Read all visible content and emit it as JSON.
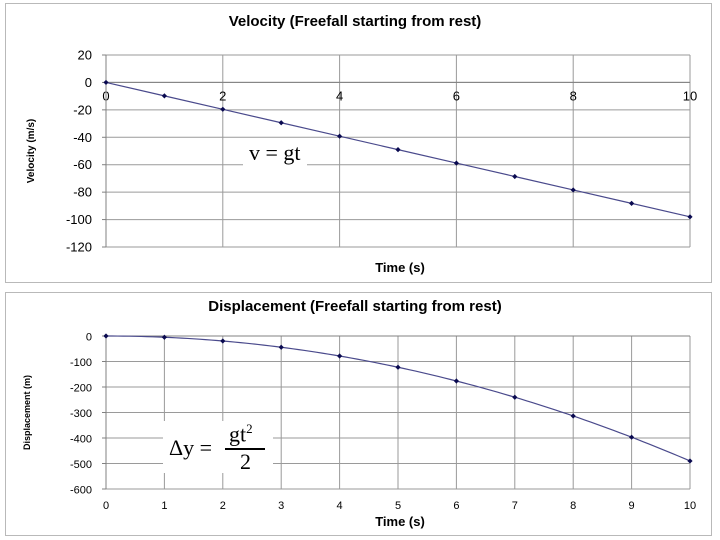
{
  "chart_data": [
    {
      "type": "line",
      "title": "Velocity (Freefall starting from rest)",
      "xlabel": "Time (s)",
      "ylabel": "Velocity (m/s)",
      "x": [
        0,
        1,
        2,
        3,
        4,
        5,
        6,
        7,
        8,
        9,
        10
      ],
      "series": [
        {
          "name": "Velocity",
          "values": [
            0,
            -9.8,
            -19.6,
            -29.4,
            -39.2,
            -49,
            -58.8,
            -68.6,
            -78.4,
            -88.2,
            -98
          ]
        }
      ],
      "xlim": [
        0,
        10
      ],
      "ylim": [
        -120,
        20
      ],
      "xticks": [
        "0",
        "2",
        "4",
        "6",
        "8",
        "10"
      ],
      "yticks": [
        "20",
        "0",
        "-20",
        "-40",
        "-60",
        "-80",
        "-100",
        "-120"
      ],
      "grid": true,
      "annotation": "v = gt",
      "color": "#4a4a8c"
    },
    {
      "type": "line",
      "title": "Displacement (Freefall starting from rest)",
      "xlabel": "Time (s)",
      "ylabel": "Displacement (m)",
      "x": [
        0,
        1,
        2,
        3,
        4,
        5,
        6,
        7,
        8,
        9,
        10
      ],
      "series": [
        {
          "name": "Displacement",
          "values": [
            0,
            -4.9,
            -19.6,
            -44.1,
            -78.4,
            -122.5,
            -176.4,
            -240.1,
            -313.6,
            -396.9,
            -490
          ]
        }
      ],
      "xlim": [
        0,
        10
      ],
      "ylim": [
        -600,
        0
      ],
      "xticks": [
        "0",
        "1",
        "2",
        "3",
        "4",
        "5",
        "6",
        "7",
        "8",
        "9",
        "10"
      ],
      "yticks": [
        "0",
        "-100",
        "-200",
        "-300",
        "-400",
        "-500",
        "-600"
      ],
      "grid": true,
      "annotation": {
        "lhs": "Δy =",
        "numerator": "gt",
        "exponent": "2",
        "denominator": "2"
      },
      "color": "#4a4a8c"
    }
  ]
}
